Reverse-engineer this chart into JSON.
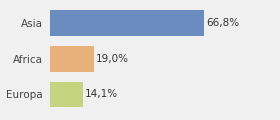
{
  "categories": [
    "Asia",
    "Africa",
    "Europa"
  ],
  "values": [
    66.8,
    19.0,
    14.1
  ],
  "bar_colors": [
    "#6b8cbf",
    "#e8b07a",
    "#c5d47e"
  ],
  "labels": [
    "66,8%",
    "19,0%",
    "14,1%"
  ],
  "background_color": "#f0f0f0",
  "xlim": [
    0,
    85
  ],
  "label_fontsize": 7.5,
  "tick_fontsize": 7.5
}
